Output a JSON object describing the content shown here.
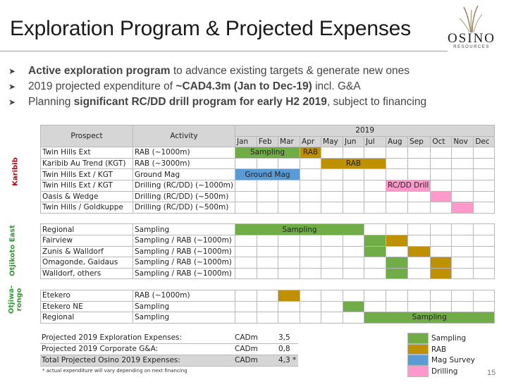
{
  "slide": {
    "title": "Exploration Program & Projected Expenses",
    "page_number": "15"
  },
  "logo": {
    "name": "OSINO",
    "sub": "RESOURCES"
  },
  "bullets": [
    {
      "bold": "Active exploration program",
      "rest": " to advance existing targets & generate new ones",
      "pre": ""
    },
    {
      "pre": "2019 projected expenditure of ",
      "bold": "~CAD4.3m (Jan to Dec-19)",
      "rest": " incl. G&A"
    },
    {
      "pre": "Planning ",
      "bold": "significant RC/DD drill program for early H2 2019",
      "rest": ", subject to financing"
    }
  ],
  "schedule": {
    "headers": {
      "prospect": "Prospect",
      "activity": "Activity",
      "year": "2019"
    },
    "months": [
      "Jan",
      "Feb",
      "Mar",
      "Apr",
      "May",
      "Jun",
      "Jul",
      "Aug",
      "Sep",
      "Oct",
      "Nov",
      "Dec"
    ],
    "groups": [
      {
        "label": "Karibib",
        "label_color": "#c0000d",
        "rows": [
          {
            "prospect": "Twin Hills Ext",
            "activity": "RAB (~1000m)",
            "bars": [
              {
                "type": "sampling",
                "start": 1,
                "span": 3,
                "label": "Sampling"
              },
              {
                "type": "rab",
                "start": 4,
                "span": 1,
                "label": "RAB"
              }
            ]
          },
          {
            "prospect": "Karibib Au Trend (KGT)",
            "activity": "RAB (~3000m)",
            "bars": [
              {
                "type": "rab",
                "start": 5,
                "span": 3,
                "label": "RAB"
              }
            ]
          },
          {
            "prospect": "Twin Hills Ext / KGT",
            "activity": "Ground Mag",
            "bars": [
              {
                "type": "mag",
                "start": 1,
                "span": 3,
                "label": "Ground Mag"
              }
            ]
          },
          {
            "prospect": "Twin Hills Ext / KGT",
            "activity": "Drilling (RC/DD) (~1000m)",
            "bars": [
              {
                "type": "drill",
                "start": 8,
                "span": 2,
                "label": "RC/DD Drill"
              }
            ]
          },
          {
            "prospect": "Oasis & Wedge",
            "activity": "Drilling (RC/DD) (~500m)",
            "bars": [
              {
                "type": "drill",
                "start": 10,
                "span": 1,
                "label": ""
              }
            ]
          },
          {
            "prospect": "Twin Hills / Goldkuppe",
            "activity": "Drilling (RC/DD) (~500m)",
            "bars": [
              {
                "type": "drill",
                "start": 11,
                "span": 1,
                "label": ""
              }
            ]
          }
        ]
      },
      {
        "label": "Otjikoto East",
        "label_color": "#2e9b2e",
        "rows": [
          {
            "prospect": "Regional",
            "activity": "Sampling",
            "bars": [
              {
                "type": "sampling",
                "start": 1,
                "span": 6,
                "label": "Sampling"
              }
            ]
          },
          {
            "prospect": "Fairview",
            "activity": "Sampling / RAB (~1000m)",
            "bars": [
              {
                "type": "sampling",
                "start": 7,
                "span": 1,
                "label": ""
              },
              {
                "type": "rab",
                "start": 8,
                "span": 1,
                "label": ""
              }
            ]
          },
          {
            "prospect": "Zunis & Walldorf",
            "activity": "Sampling / RAB (~1000m)",
            "bars": [
              {
                "type": "sampling",
                "start": 7,
                "span": 1,
                "label": ""
              },
              {
                "type": "rab",
                "start": 9,
                "span": 1,
                "label": ""
              }
            ]
          },
          {
            "prospect": "Omagonde, Gaidaus",
            "activity": "Sampling / RAB (~1000m)",
            "bars": [
              {
                "type": "sampling",
                "start": 8,
                "span": 1,
                "label": ""
              },
              {
                "type": "rab",
                "start": 10,
                "span": 1,
                "label": ""
              }
            ]
          },
          {
            "prospect": "Walldorf, others",
            "activity": "Sampling / RAB (~1000m)",
            "bars": [
              {
                "type": "sampling",
                "start": 8,
                "span": 1,
                "label": ""
              },
              {
                "type": "rab",
                "start": 10,
                "span": 1,
                "label": ""
              }
            ]
          }
        ]
      },
      {
        "label": "Otjiwa-\nrongo",
        "label_color": "#2e9b2e",
        "rows": [
          {
            "prospect": "Etekero",
            "activity": "RAB (~1000m)",
            "bars": [
              {
                "type": "rab",
                "start": 3,
                "span": 1,
                "label": ""
              }
            ]
          },
          {
            "prospect": "Etekero NE",
            "activity": "Sampling",
            "bars": [
              {
                "type": "sampling",
                "start": 6,
                "span": 1,
                "label": ""
              }
            ]
          },
          {
            "prospect": "Regional",
            "activity": "Sampling",
            "bars": [
              {
                "type": "sampling",
                "start": 7,
                "span": 6,
                "label": "Sampling"
              }
            ]
          }
        ]
      }
    ]
  },
  "expenses": [
    {
      "label": "Projected 2019 Exploration Expenses:",
      "unit": "CADm",
      "value": "3,5",
      "total": false
    },
    {
      "label": "Projected 2019 Corporate G&A:",
      "unit": "CADm",
      "value": "0,8",
      "total": false
    },
    {
      "label": "Total Projected Osino 2019 Expenses:",
      "unit": "CADm",
      "value": "4,3 *",
      "total": true
    }
  ],
  "footnote": "* actual expenditure will vary depending on next financing",
  "legend": [
    {
      "type": "sampling",
      "label": "Sampling",
      "color": "#70ad47"
    },
    {
      "type": "rab",
      "label": "RAB",
      "color": "#bf9000"
    },
    {
      "type": "mag",
      "label": "Mag Survey",
      "color": "#5b9bd5"
    },
    {
      "type": "drill",
      "label": "Drilling",
      "color": "#ff99cc"
    }
  ],
  "colors": {
    "sampling": "#70ad47",
    "rab": "#bf9000",
    "mag": "#5b9bd5",
    "drill": "#ff99cc"
  }
}
